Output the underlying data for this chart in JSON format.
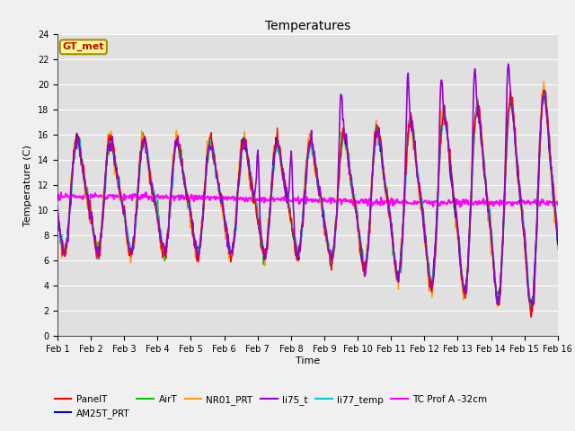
{
  "title": "Temperatures",
  "xlabel": "Time",
  "ylabel": "Temperature (C)",
  "ylim": [
    0,
    24
  ],
  "yticks": [
    0,
    2,
    4,
    6,
    8,
    10,
    12,
    14,
    16,
    18,
    20,
    22,
    24
  ],
  "xtick_labels": [
    "Feb 1",
    "Feb 2",
    "Feb 3",
    "Feb 4",
    "Feb 5",
    "Feb 6",
    "Feb 7",
    "Feb 8",
    "Feb 9",
    "Feb 10",
    "Feb 11",
    "Feb 12",
    "Feb 13",
    "Feb 14",
    "Feb 15",
    "Feb 16"
  ],
  "series_colors": {
    "PanelT": "#ff0000",
    "AM25T_PRT": "#0000cc",
    "AirT": "#00cc00",
    "NR01_PRT": "#ff9900",
    "li75_t": "#9900cc",
    "li77_temp": "#00cccc",
    "TC Prof A -32cm": "#ff00ff"
  },
  "annotation_text": "GT_met",
  "annotation_box_color": "#ffff99",
  "annotation_border_color": "#aa8800",
  "annotation_text_color": "#cc0000",
  "fig_bg_color": "#f0f0f0",
  "ax_bg_color": "#e0e0e0",
  "n_points": 720
}
